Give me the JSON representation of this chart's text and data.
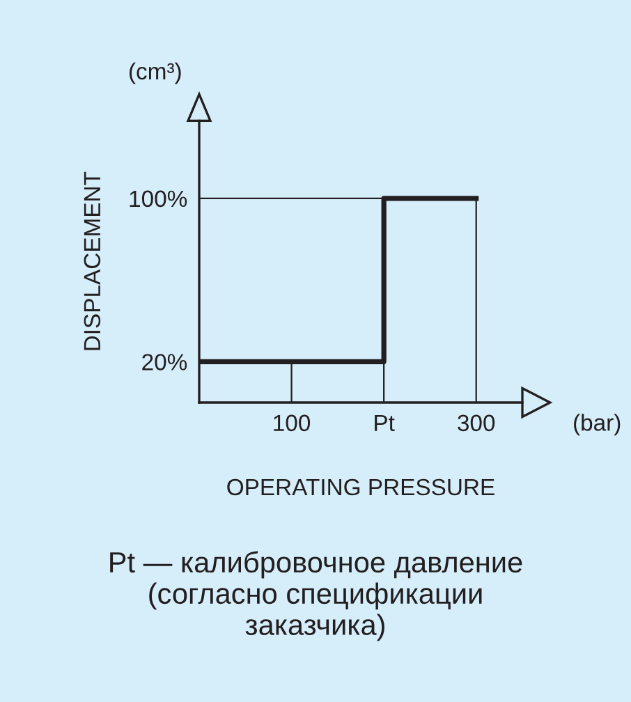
{
  "chart_data": {
    "type": "step",
    "x": [
      0,
      200,
      300
    ],
    "series": [
      {
        "color": "#231f20",
        "values": [
          20,
          100,
          100
        ]
      }
    ],
    "xlim": [
      0,
      350
    ],
    "ylim": [
      0,
      138
    ],
    "xticks": [
      100,
      {
        "value": 200,
        "label": "Pt"
      },
      300
    ],
    "yticks": [
      {
        "value": 20,
        "label": "20%"
      },
      {
        "value": 100,
        "label": "100%"
      }
    ],
    "ylabel": "DISPLACEMENT",
    "xlabel": "OPERATING PRESSURE",
    "grid": true,
    "annotations": [
      "(cm³)",
      "(bar)",
      "Pt — калибровочное давление\n(согласно спецификации\nзаказчика)"
    ]
  }
}
